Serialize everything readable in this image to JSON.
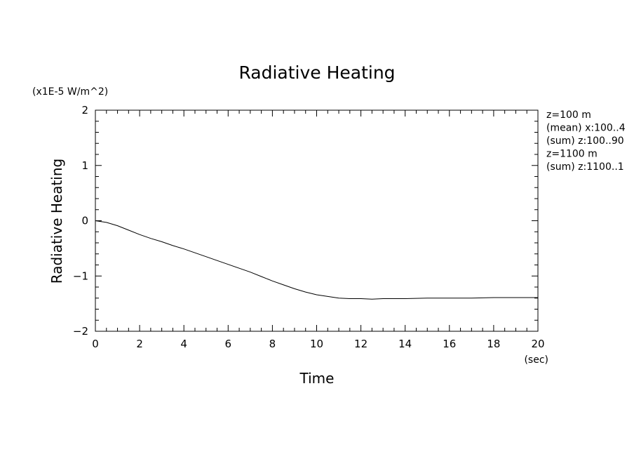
{
  "chart_data": {
    "type": "line",
    "title": "Radiative Heating",
    "xlabel": "Time",
    "xunit": "(sec)",
    "ylabel": "Radiative Heating",
    "yunit": "(x1E-5 W/m^2)",
    "xlim": [
      0,
      20
    ],
    "ylim": [
      -2,
      2
    ],
    "xticks": [
      "0",
      "2",
      "4",
      "6",
      "8",
      "10",
      "12",
      "14",
      "16",
      "18",
      "20"
    ],
    "yticks": [
      "2",
      "1",
      "0",
      "−1",
      "−2"
    ],
    "legend_position": "right",
    "legend": [
      "z=100 m",
      "(mean) x:100..4",
      "(sum) z:100..90",
      "z=1100 m",
      "(sum) z:1100..1"
    ],
    "grid": false,
    "series": [
      {
        "color": "#000000",
        "x": [
          0,
          0.5,
          1,
          1.5,
          2,
          2.5,
          3,
          3.5,
          4,
          4.5,
          5,
          5.5,
          6,
          6.5,
          7,
          7.5,
          8,
          8.5,
          9,
          9.5,
          10,
          10.5,
          11,
          11.5,
          12,
          12.5,
          13,
          14,
          15,
          16,
          17,
          18,
          19,
          20
        ],
        "y": [
          0,
          -0.03,
          -0.09,
          -0.17,
          -0.25,
          -0.32,
          -0.38,
          -0.45,
          -0.51,
          -0.58,
          -0.65,
          -0.72,
          -0.79,
          -0.86,
          -0.93,
          -1.01,
          -1.09,
          -1.16,
          -1.23,
          -1.29,
          -1.34,
          -1.37,
          -1.4,
          -1.41,
          -1.41,
          -1.42,
          -1.41,
          -1.41,
          -1.4,
          -1.4,
          -1.4,
          -1.39,
          -1.39,
          -1.39
        ]
      }
    ]
  }
}
